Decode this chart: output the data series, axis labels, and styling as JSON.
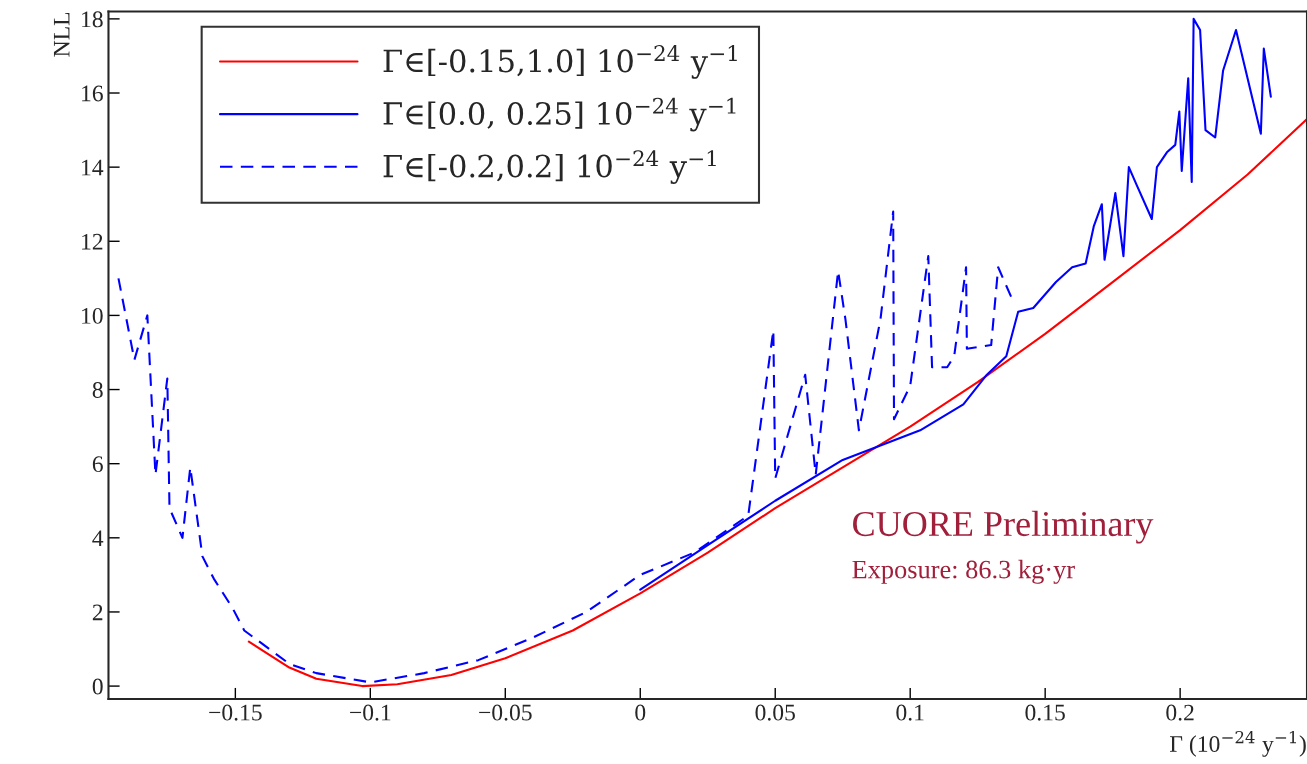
{
  "chart_data": {
    "type": "line",
    "xlabel": "Γ (10$^{−24}$ y$^{−1}$)",
    "ylabel": "NLL",
    "xlim": [
      -0.197,
      0.247
    ],
    "ylim": [
      -0.35,
      18.2
    ],
    "xticks": [
      {
        "value": -0.15,
        "label": "−0.15"
      },
      {
        "value": -0.1,
        "label": "−0.1"
      },
      {
        "value": -0.05,
        "label": "−0.05"
      },
      0,
      0.05,
      0.1,
      0.15,
      0.2
    ],
    "yticks": [
      0,
      2,
      4,
      6,
      8,
      10,
      12,
      14,
      16,
      18
    ],
    "grid": false,
    "legend": "top left",
    "series": [
      {
        "name": "Γ∈[-0.15,1.0] 10$^{−24}$ y$^{−1}$",
        "color": "#ff0000",
        "line_style": "solid",
        "x": [
          -0.145,
          -0.13,
          -0.12,
          -0.103,
          -0.09,
          -0.07,
          -0.05,
          -0.025,
          0,
          0.025,
          0.05,
          0.075,
          0.1,
          0.125,
          0.15,
          0.175,
          0.2,
          0.225,
          0.247
        ],
        "values": [
          1.2,
          0.5,
          0.2,
          0,
          0.05,
          0.3,
          0.75,
          1.5,
          2.5,
          3.6,
          4.8,
          5.9,
          7.0,
          8.2,
          9.5,
          10.9,
          12.3,
          13.8,
          15.3
        ]
      },
      {
        "name": "Γ∈[0.0, 0.25] 10$^{−24}$ y$^{−1}$",
        "color": "#0000ff",
        "line_style": "solid",
        "x": [
          0,
          0.025,
          0.05,
          0.075,
          0.1037,
          0.1197,
          0.1284,
          0.1356,
          0.14,
          0.1456,
          0.154,
          0.16,
          0.165,
          0.168,
          0.171,
          0.172,
          0.176,
          0.179,
          0.181,
          0.184,
          0.1895,
          0.1914,
          0.1951,
          0.1982,
          0.1997,
          0.2006,
          0.203,
          0.2043,
          0.205,
          0.2074,
          0.2094,
          0.213,
          0.2159,
          0.2207,
          0.2299,
          0.231,
          0.2336
        ],
        "values": [
          2.6,
          3.8,
          5.0,
          6.1,
          6.9,
          7.6,
          8.4,
          8.9,
          10.1,
          10.2,
          10.9,
          11.3,
          11.4,
          12.4,
          13.0,
          11.5,
          13.3,
          11.6,
          14.0,
          13.5,
          12.6,
          14.0,
          14.4,
          14.6,
          15.5,
          13.9,
          16.4,
          13.6,
          18.0,
          17.7,
          15.0,
          14.8,
          16.6,
          17.7,
          14.9,
          17.2,
          15.9
        ]
      },
      {
        "name": "Γ∈[-0.2,0.2] 10$^{−24}$ y$^{−1}$",
        "color": "#0000ff",
        "line_style": "dashed",
        "x": [
          -0.1933,
          -0.1874,
          -0.1826,
          -0.1796,
          -0.1752,
          -0.1744,
          -0.1696,
          -0.1667,
          -0.1622,
          -0.158,
          -0.151,
          -0.1467,
          -0.13,
          -0.12,
          -0.1,
          -0.08,
          -0.06,
          -0.04,
          -0.02,
          0,
          0.02,
          0.04,
          0.0493,
          0.05,
          0.0611,
          0.065,
          0.0733,
          0.076,
          0.081,
          0.089,
          0.0937,
          0.094,
          0.1,
          0.1067,
          0.1081,
          0.1137,
          0.1163,
          0.1207,
          0.121,
          0.13,
          0.1326,
          0.138
        ],
        "values": [
          11.0,
          8.8,
          10.0,
          5.7,
          8.3,
          4.8,
          4.0,
          5.9,
          3.5,
          2.9,
          2.1,
          1.5,
          0.6,
          0.35,
          0.1,
          0.35,
          0.7,
          1.3,
          2.0,
          3.0,
          3.6,
          4.6,
          9.6,
          5.6,
          8.4,
          5.7,
          11.2,
          9.9,
          6.9,
          9.9,
          12.8,
          7.2,
          8.1,
          11.6,
          8.6,
          8.6,
          8.9,
          11.3,
          9.1,
          9.2,
          11.3,
          10.4
        ]
      }
    ],
    "annotations": [
      "CUORE Preliminary",
      "Exposure: 86.3 kg·yr"
    ]
  }
}
